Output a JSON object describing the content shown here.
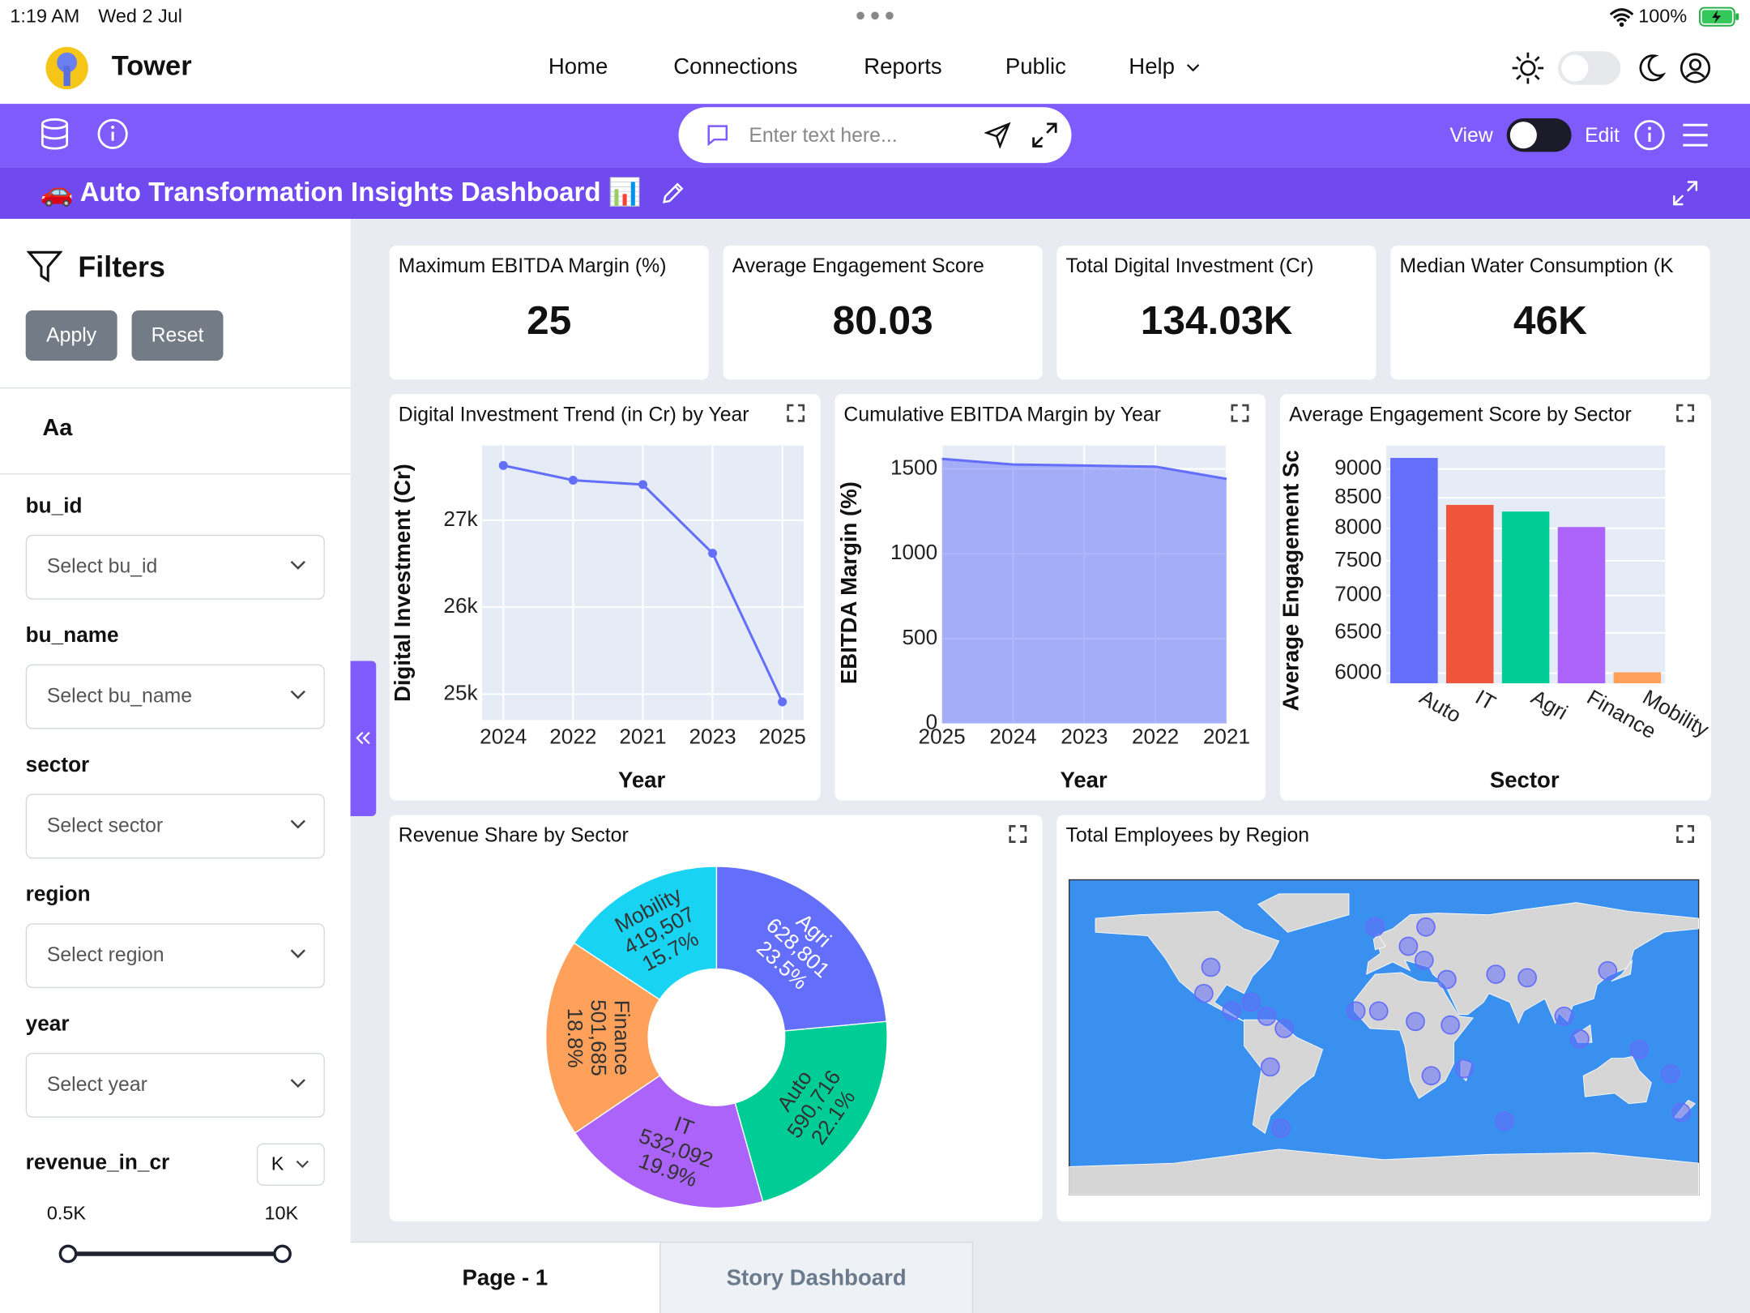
{
  "status_bar": {
    "time": "1:19 AM",
    "date": "Wed 2 Jul",
    "battery": "100%"
  },
  "nav": {
    "brand": "Tower",
    "links": [
      "Home",
      "Connections",
      "Reports",
      "Public",
      "Help"
    ]
  },
  "toolbar": {
    "search_placeholder": "Enter text here...",
    "view": "View",
    "edit": "Edit"
  },
  "dashboard": {
    "title": "🚗 Auto Transformation Insights Dashboard 📊"
  },
  "filters": {
    "title": "Filters",
    "apply": "Apply",
    "reset": "Reset",
    "font_toggle": "Aa",
    "fields": [
      {
        "label": "bu_id",
        "placeholder": "Select bu_id"
      },
      {
        "label": "bu_name",
        "placeholder": "Select bu_name"
      },
      {
        "label": "sector",
        "placeholder": "Select sector"
      },
      {
        "label": "region",
        "placeholder": "Select region"
      },
      {
        "label": "year",
        "placeholder": "Select year"
      }
    ],
    "range": {
      "label": "revenue_in_cr",
      "unit": "K",
      "min": "0.5K",
      "max": "10K"
    }
  },
  "kpis": [
    {
      "label": "Maximum EBITDA Margin (%)",
      "value": "25"
    },
    {
      "label": "Average Engagement Score",
      "value": "80.03"
    },
    {
      "label": "Total Digital Investment (Cr)",
      "value": "134.03K"
    },
    {
      "label": "Median Water Consumption (K",
      "value": "46K"
    }
  ],
  "charts": [
    {
      "type": "line",
      "title": "Digital Investment Trend (in Cr) by Year",
      "x_label": "Year",
      "y_label": "Digital Investment (Cr)",
      "categories": [
        "2024",
        "2022",
        "2021",
        "2023",
        "2025"
      ],
      "values": [
        27630,
        27460,
        27410,
        26620,
        24910
      ],
      "color": "#636efa",
      "ylim": [
        24700,
        27860
      ],
      "yticks": [
        {
          "value": 25000,
          "label": "25k"
        },
        {
          "value": 26000,
          "label": "26k"
        },
        {
          "value": 27000,
          "label": "27k"
        }
      ],
      "grid": true
    },
    {
      "type": "area",
      "title": "Cumulative EBITDA Margin by Year",
      "x_label": "Year",
      "y_label": "EBITDA Margin (%)",
      "categories": [
        "2025",
        "2024",
        "2023",
        "2022",
        "2021"
      ],
      "values": [
        1559,
        1526,
        1520,
        1513,
        1441
      ],
      "color": "#636efa",
      "ylim": [
        0,
        1638
      ],
      "yticks": [
        0,
        500,
        1000,
        1500
      ],
      "grid": true
    },
    {
      "type": "bar",
      "title": "Average Engagement Score by Sector",
      "x_label": "Sector",
      "y_label": "Average Engagement Sc",
      "categories": [
        "Auto",
        "IT",
        "Agri",
        "Finance",
        "Mobility"
      ],
      "values": [
        9200,
        8380,
        8270,
        8020,
        6010
      ],
      "colors": [
        "#636efa",
        "#ef553b",
        "#00cc96",
        "#ab63fa",
        "#ffa15a"
      ],
      "log_y": true,
      "ylim": [
        5880,
        9430
      ],
      "yticks": [
        6000,
        6500,
        7000,
        7500,
        8000,
        8500,
        9000
      ],
      "grid": true
    },
    {
      "type": "pie",
      "title": "Revenue Share by Sector",
      "categories": [
        "Agri",
        "Auto",
        "IT",
        "Finance",
        "Mobility"
      ],
      "values": [
        628801,
        590716,
        532092,
        501685,
        419507
      ],
      "value_labels": [
        "628,801",
        "590,716",
        "532,092",
        "501,685",
        "419,507"
      ],
      "percents": [
        23.5,
        22.1,
        19.9,
        18.8,
        15.7
      ],
      "percent_labels": [
        "23.5%",
        "22.1%",
        "19.9%",
        "18.8%",
        "15.7%"
      ],
      "colors": [
        "#636efa",
        "#00cc96",
        "#ab63fa",
        "#ffa15a",
        "#19d3f3"
      ],
      "hole": 0.4
    },
    {
      "type": "scatter_geo",
      "title": "Total Employees by Region",
      "lon": [
        -99,
        -103,
        -87,
        -76,
        -67,
        -57,
        -65,
        -59,
        -5,
        24,
        14,
        23,
        36,
        -3,
        18,
        38,
        27,
        46,
        64,
        82,
        103,
        112,
        128,
        146,
        164,
        170,
        69,
        -16
      ],
      "lat": [
        40,
        25,
        15,
        20,
        12,
        5,
        -17,
        -52,
        63,
        63,
        52,
        44,
        33,
        15,
        9,
        7,
        -22,
        -18,
        36,
        34,
        12,
        -1,
        38,
        -7,
        -21,
        -43,
        -48,
        15
      ],
      "xlim": [
        -180,
        180
      ],
      "ylim": [
        -90,
        90
      ],
      "color": "#636efa",
      "land_color": "#d6d6d6",
      "ocean_color": "#3a90ee"
    }
  ],
  "tabs": [
    "Page - 1",
    "Story Dashboard"
  ]
}
